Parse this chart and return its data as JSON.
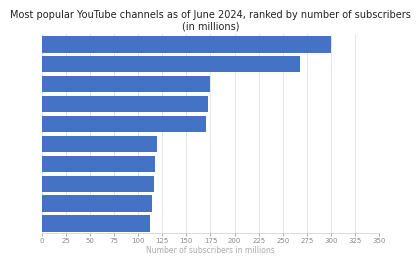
{
  "title": "Most popular YouTube channels as of June 2024, ranked by number of subscribers\n(in millions)",
  "xlabel": "Number of subscribers in millions",
  "values": [
    300,
    268,
    175,
    172,
    170,
    120,
    118,
    117,
    114,
    112
  ],
  "bar_color": "#4472c4",
  "xlim": [
    0,
    350
  ],
  "xticks": [
    0,
    25,
    50,
    75,
    100,
    125,
    150,
    175,
    200,
    225,
    250,
    275,
    300,
    325,
    350
  ],
  "title_fontsize": 7.0,
  "xlabel_fontsize": 5.5,
  "xtick_fontsize": 5.0,
  "background_color": "#ffffff",
  "plot_background": "#ffffff",
  "bar_height": 0.82,
  "grid_color": "#e0e0e0",
  "spine_color": "#cccccc",
  "tick_color": "#888888",
  "xlabel_color": "#aaaaaa",
  "title_color": "#222222"
}
